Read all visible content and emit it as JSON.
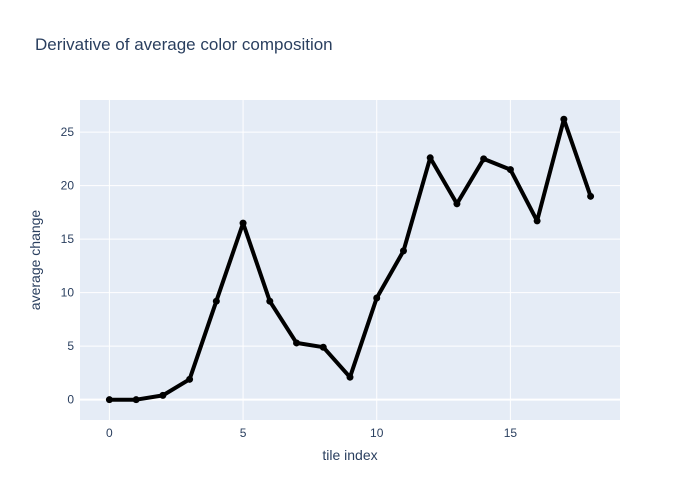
{
  "chart_data": {
    "type": "line",
    "title": "Derivative of average color composition",
    "xlabel": "tile index",
    "ylabel": "average change",
    "xlim": [
      -1.1,
      19.1
    ],
    "ylim": [
      -1.9,
      28
    ],
    "x_ticks": [
      0,
      5,
      10,
      15
    ],
    "y_ticks": [
      0,
      5,
      10,
      15,
      20,
      25
    ],
    "grid": true,
    "legend": "none",
    "colors": {
      "plot_background": "#e5ecf6",
      "grid": "#ffffff",
      "line": "#000000",
      "text": "#2a3f5f"
    },
    "series": [
      {
        "x": [
          0,
          1,
          2,
          3,
          4,
          5,
          6,
          7,
          8,
          9,
          10,
          11,
          12,
          13,
          14,
          15,
          16,
          17,
          18
        ],
        "values": [
          0,
          0,
          0.4,
          1.9,
          9.2,
          16.5,
          9.2,
          5.3,
          4.9,
          2.1,
          9.5,
          13.9,
          22.6,
          18.3,
          22.5,
          21.5,
          16.7,
          26.2,
          19.0
        ]
      }
    ]
  }
}
